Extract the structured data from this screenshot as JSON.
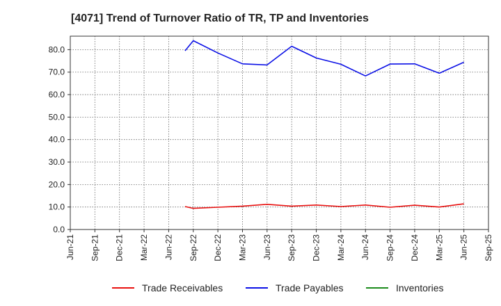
{
  "chart_data": {
    "type": "line",
    "title": "[4071]  Trend of Turnover Ratio of TR, TP and Inventories",
    "xlabel": "",
    "ylabel": "",
    "ylim": [
      0,
      86
    ],
    "yticks": [
      "0.0",
      "10.0",
      "20.0",
      "30.0",
      "40.0",
      "50.0",
      "60.0",
      "70.0",
      "80.0"
    ],
    "categories": [
      "Jun-21",
      "Sep-21",
      "Dec-21",
      "Mar-22",
      "Jun-22",
      "Sep-22",
      "Dec-22",
      "Mar-23",
      "Jun-23",
      "Sep-23",
      "Dec-23",
      "Mar-24",
      "Jun-24",
      "Sep-24",
      "Dec-24",
      "Mar-25",
      "Jun-25",
      "Sep-25"
    ],
    "grid": true,
    "legend_position": "bottom",
    "series": [
      {
        "name": "Trade Receivables",
        "color": "#e8100f",
        "points": [
          {
            "x": "Aug-22",
            "y": 10.2
          },
          {
            "x": "Sep-22",
            "y": 9.4
          },
          {
            "x": "Dec-22",
            "y": 9.9
          },
          {
            "x": "Mar-23",
            "y": 10.4
          },
          {
            "x": "Jun-23",
            "y": 11.2
          },
          {
            "x": "Sep-23",
            "y": 10.4
          },
          {
            "x": "Dec-23",
            "y": 10.9
          },
          {
            "x": "Mar-24",
            "y": 10.2
          },
          {
            "x": "Jun-24",
            "y": 10.9
          },
          {
            "x": "Sep-24",
            "y": 9.9
          },
          {
            "x": "Dec-24",
            "y": 10.8
          },
          {
            "x": "Mar-25",
            "y": 10.0
          },
          {
            "x": "Jun-25",
            "y": 11.4
          }
        ]
      },
      {
        "name": "Trade Payables",
        "color": "#0b10e6",
        "points": [
          {
            "x": "Aug-22",
            "y": 79.5
          },
          {
            "x": "Sep-22",
            "y": 84.0
          },
          {
            "x": "Dec-22",
            "y": 78.5
          },
          {
            "x": "Mar-23",
            "y": 73.7
          },
          {
            "x": "Jun-23",
            "y": 73.2
          },
          {
            "x": "Sep-23",
            "y": 81.5
          },
          {
            "x": "Dec-23",
            "y": 76.3
          },
          {
            "x": "Mar-24",
            "y": 73.5
          },
          {
            "x": "Jun-24",
            "y": 68.3
          },
          {
            "x": "Sep-24",
            "y": 73.6
          },
          {
            "x": "Dec-24",
            "y": 73.7
          },
          {
            "x": "Mar-25",
            "y": 69.5
          },
          {
            "x": "Jun-25",
            "y": 74.4
          }
        ]
      },
      {
        "name": "Inventories",
        "color": "#1a8a1a",
        "points": []
      }
    ]
  }
}
